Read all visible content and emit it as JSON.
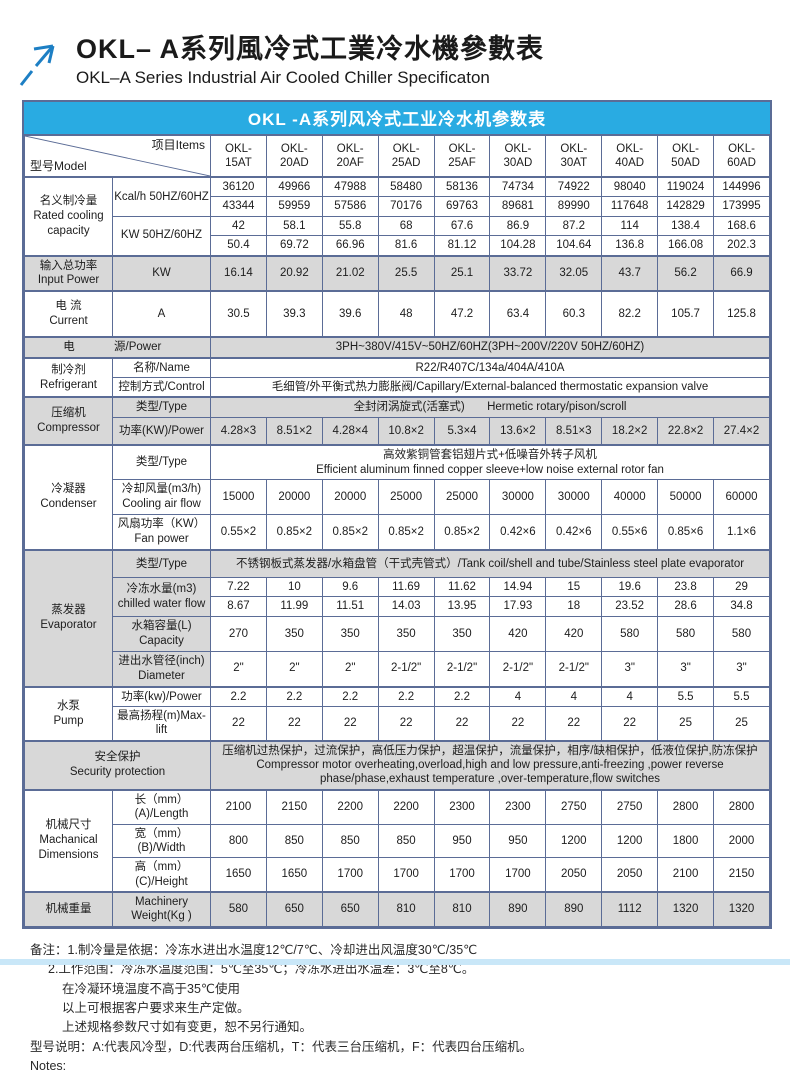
{
  "page": {
    "title_zh": "OKL– A系列風冷式工業冷水機參數表",
    "title_en": "OKL–A Series Industrial Air Cooled Chiller Specificaton",
    "accent_blue": "#29abe2",
    "logo_icon": "arrow-up-right"
  },
  "table": {
    "banner": "OKL -A系列风冷式工业冷水机参数表",
    "corner": {
      "model": "型号Model",
      "items": "项目Items"
    },
    "models": [
      "OKL-15AT",
      "OKL-20AD",
      "OKL-20AF",
      "OKL-25AD",
      "OKL-25AF",
      "OKL-30AD",
      "OKL-30AT",
      "OKL-40AD",
      "OKL-50AD",
      "OKL-60AD"
    ],
    "rated": {
      "label_zh": "名义制冷量",
      "label_en": "Rated cooling capacity",
      "kcal_label": "Kcal/h 50HZ/60HZ",
      "kcal_50": [
        "36120",
        "49966",
        "47988",
        "58480",
        "58136",
        "74734",
        "74922",
        "98040",
        "119024",
        "144996"
      ],
      "kcal_60": [
        "43344",
        "59959",
        "57586",
        "70176",
        "69763",
        "89681",
        "89990",
        "117648",
        "142829",
        "173995"
      ],
      "kw_label": "KW 50HZ/60HZ",
      "kw_50": [
        "42",
        "58.1",
        "55.8",
        "68",
        "67.6",
        "86.9",
        "87.2",
        "114",
        "138.4",
        "168.6"
      ],
      "kw_60": [
        "50.4",
        "69.72",
        "66.96",
        "81.6",
        "81.12",
        "104.28",
        "104.64",
        "136.8",
        "166.08",
        "202.3"
      ]
    },
    "input_power": {
      "label_zh": "输入总功率",
      "label_en": "Input Power",
      "unit": "KW",
      "values": [
        "16.14",
        "20.92",
        "21.02",
        "25.5",
        "25.1",
        "33.72",
        "32.05",
        "43.7",
        "56.2",
        "66.9"
      ]
    },
    "current": {
      "label_zh": "电 流",
      "label_en": "Current",
      "unit": "A",
      "values": [
        "30.5",
        "39.3",
        "39.6",
        "48",
        "47.2",
        "63.4",
        "60.3",
        "82.2",
        "105.7",
        "125.8"
      ]
    },
    "power_supply": {
      "label_left": "电",
      "label_right": "源/Power",
      "value": "3PH~380V/415V~50HZ/60HZ(3PH~200V/220V  50HZ/60HZ)"
    },
    "refrigerant": {
      "label_zh": "制冷剂",
      "label_en": "Refrigerant",
      "name_label": "名称/Name",
      "name": "R22/R407C/134a/404A/410A",
      "control_label": "控制方式/Control",
      "control": "毛细管/外平衡式热力膨胀阀/Capillary/External-balanced thermostatic expansion valve"
    },
    "compressor": {
      "label_zh": "压缩机",
      "label_en": "Compressor",
      "type_label": "类型/Type",
      "type_zh": "全封闭涡旋式(活塞式)",
      "type_en": "Hermetic rotary/pison/scroll",
      "power_label": "功率(KW)/Power",
      "power": [
        "4.28×3",
        "8.51×2",
        "4.28×4",
        "10.8×2",
        "5.3×4",
        "13.6×2",
        "8.51×3",
        "18.2×2",
        "22.8×2",
        "27.4×2"
      ]
    },
    "condenser": {
      "label_zh": "冷凝器",
      "label_en": "Condenser",
      "type_label": "类型/Type",
      "type_zh": "高效紫铜管套铝翅片式+低噪音外转子风机",
      "type_en": "Efficient aluminum finned copper sleeve+low noise external rotor fan",
      "airflow_label_zh": "冷却风量(m3/h)",
      "airflow_label_en": "Cooling air flow",
      "airflow": [
        "15000",
        "20000",
        "20000",
        "25000",
        "25000",
        "30000",
        "30000",
        "40000",
        "50000",
        "60000"
      ],
      "fan_label_zh": "风扇功率（KW）",
      "fan_label_en": "Fan power",
      "fan": [
        "0.55×2",
        "0.85×2",
        "0.85×2",
        "0.85×2",
        "0.85×2",
        "0.42×6",
        "0.42×6",
        "0.55×6",
        "0.85×6",
        "1.1×6"
      ]
    },
    "evaporator": {
      "label_zh": "蒸发器",
      "label_en": "Evaporator",
      "type_label": "类型/Type",
      "type": "不锈钢板式蒸发器/水箱盘管（干式壳管式）/Tank coil/shell and tube/Stainless steel plate evaporator",
      "flow_label_zh": "冷冻水量(m3)",
      "flow_label_en": "chilled water flow",
      "flow_50": [
        "7.22",
        "10",
        "9.6",
        "11.69",
        "11.62",
        "14.94",
        "15",
        "19.6",
        "23.8",
        "29"
      ],
      "flow_60": [
        "8.67",
        "11.99",
        "11.51",
        "14.03",
        "13.95",
        "17.93",
        "18",
        "23.52",
        "28.6",
        "34.8"
      ],
      "tank_label_zh": "水箱容量(L)",
      "tank_label_en": "Capacity",
      "tank": [
        "270",
        "350",
        "350",
        "350",
        "350",
        "420",
        "420",
        "580",
        "580",
        "580"
      ],
      "pipe_label_zh": "进出水管径(inch)",
      "pipe_label_en": "Diameter",
      "pipe": [
        "2\"",
        "2\"",
        "2\"",
        "2-1/2\"",
        "2-1/2\"",
        "2-1/2\"",
        "2-1/2\"",
        "3\"",
        "3\"",
        "3\""
      ]
    },
    "pump": {
      "label_zh": "水泵",
      "label_en": "Pump",
      "power_label": "功率(kw)/Power",
      "power": [
        "2.2",
        "2.2",
        "2.2",
        "2.2",
        "2.2",
        "4",
        "4",
        "4",
        "5.5",
        "5.5"
      ],
      "lift_label": "最高扬程(m)Max-lift",
      "lift": [
        "22",
        "22",
        "22",
        "22",
        "22",
        "22",
        "22",
        "22",
        "25",
        "25"
      ]
    },
    "security": {
      "label_zh": "安全保护",
      "label_en": "Security protection",
      "text_zh": "压缩机过热保护，过流保护，高低压力保护，超温保护，流量保护，相序/缺相保护，低液位保护,防冻保护",
      "text_en": "Compressor motor overheating,overload,high and low pressure,anti-freezing ,power reverse phase/phase,exhaust temperature ,over-temperature,flow switches"
    },
    "dimensions": {
      "label_zh": "机械尺寸",
      "label_en": "Machanical Dimensions",
      "length_label": "长（mm）(A)/Length",
      "length": [
        "2100",
        "2150",
        "2200",
        "2200",
        "2300",
        "2300",
        "2750",
        "2750",
        "2800",
        "2800"
      ],
      "width_label": "宽（mm）(B)/Width",
      "width": [
        "800",
        "850",
        "850",
        "850",
        "950",
        "950",
        "1200",
        "1200",
        "1800",
        "2000"
      ],
      "height_label": "高（mm）(C)/Height",
      "height": [
        "1650",
        "1650",
        "1700",
        "1700",
        "1700",
        "1700",
        "2050",
        "2050",
        "2100",
        "2150"
      ]
    },
    "weight": {
      "label_zh": "机械重量",
      "label_en": "Machinery Weight(Kg )",
      "values": [
        "580",
        "650",
        "650",
        "810",
        "810",
        "890",
        "890",
        "1112",
        "1320",
        "1320"
      ]
    }
  },
  "notes": {
    "lines": [
      "备注：1.制冷量是依据：冷冻水进出水温度12℃/7℃、冷却进出风温度30℃/35℃",
      "2.工作范围：冷冻水温度范围：5℃至35℃；冷冻水进出水温差：3℃至8℃。",
      "在冷凝环境温度不高于35℃使用",
      "以上可根据客户要求来生产定做。",
      "上述规格参数尺寸如有变更，恕不另行通知。",
      "型号说明：A:代表风冷型，D:代表两台压缩机，T：代表三台压缩机，F：代表四台压缩机。",
      "Notes:"
    ]
  }
}
